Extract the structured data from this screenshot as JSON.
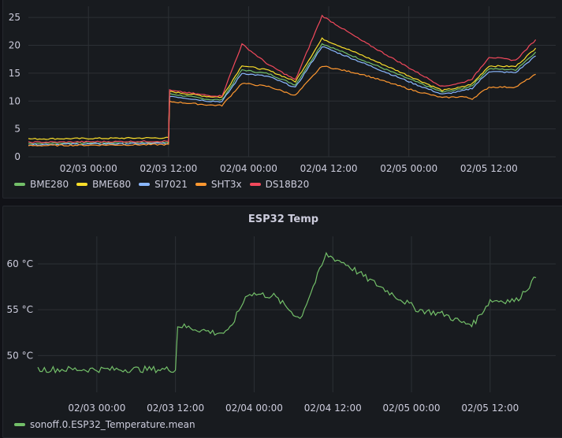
{
  "chart_data": [
    {
      "type": "line",
      "title": "",
      "ylim": [
        0,
        27
      ],
      "yticks": [
        0,
        5,
        10,
        15,
        20,
        25
      ],
      "xlim": [
        "02/02 15:00",
        "02/05 22:00"
      ],
      "xticks": [
        "02/03 00:00",
        "02/03 12:00",
        "02/04 00:00",
        "02/04 12:00",
        "02/05 00:00",
        "02/05 12:00"
      ],
      "grid": true,
      "legend": "bottom-left",
      "series": [
        {
          "name": "BME280",
          "color": "#73bf69",
          "x": [
            "02/02 15:00",
            "02/03 12:00",
            "02/03 12:10",
            "02/03 18:00",
            "02/03 20:00",
            "02/03 23:00",
            "02/04 03:00",
            "02/04 07:00",
            "02/04 11:00",
            "02/04 17:00",
            "02/05 01:00",
            "02/05 05:00",
            "02/05 08:00",
            "02/05 09:30",
            "02/05 12:00",
            "02/05 16:00",
            "02/05 19:00"
          ],
          "y": [
            2.4,
            2.6,
            11.3,
            10.3,
            10.2,
            15.6,
            14.9,
            12.9,
            20.3,
            17.4,
            13.5,
            11.6,
            12.2,
            12.8,
            15.8,
            15.6,
            18.8
          ]
        },
        {
          "name": "BME680",
          "color": "#fade2a",
          "x": [
            "02/02 15:00",
            "02/03 12:00",
            "02/03 12:10",
            "02/03 18:00",
            "02/03 20:00",
            "02/03 23:00",
            "02/04 03:00",
            "02/04 07:00",
            "02/04 11:00",
            "02/04 17:00",
            "02/05 01:00",
            "02/05 05:00",
            "02/05 08:00",
            "02/05 09:30",
            "02/05 12:00",
            "02/05 16:00",
            "02/05 19:00"
          ],
          "y": [
            3.2,
            3.4,
            11.7,
            10.8,
            10.7,
            16.4,
            15.5,
            13.5,
            21.2,
            18.2,
            14.0,
            11.9,
            12.5,
            13.1,
            16.3,
            16.2,
            19.5
          ]
        },
        {
          "name": "SI7021",
          "color": "#8ab8ff",
          "x": [
            "02/02 15:00",
            "02/03 12:00",
            "02/03 12:10",
            "02/03 18:00",
            "02/03 20:00",
            "02/03 23:00",
            "02/04 03:00",
            "02/04 07:00",
            "02/04 11:00",
            "02/04 17:00",
            "02/05 01:00",
            "02/05 05:00",
            "02/05 08:00",
            "02/05 09:30",
            "02/05 12:00",
            "02/05 16:00",
            "02/05 19:00"
          ],
          "y": [
            2.2,
            2.4,
            10.9,
            10.0,
            9.9,
            15.0,
            14.4,
            12.4,
            19.8,
            16.9,
            13.0,
            11.2,
            11.8,
            12.3,
            15.3,
            15.1,
            18.1
          ]
        },
        {
          "name": "SHT3x",
          "color": "#ff9830",
          "x": [
            "02/02 15:00",
            "02/03 12:00",
            "02/03 12:10",
            "02/03 18:00",
            "02/03 20:00",
            "02/03 23:00",
            "02/04 03:00",
            "02/04 07:00",
            "02/04 11:00",
            "02/04 17:00",
            "02/05 01:00",
            "02/05 05:00",
            "02/05 08:00",
            "02/05 09:30",
            "02/05 12:00",
            "02/05 16:00",
            "02/05 19:00"
          ],
          "y": [
            2.0,
            2.2,
            9.9,
            9.3,
            9.2,
            13.2,
            12.6,
            11.0,
            16.3,
            14.8,
            11.8,
            10.6,
            10.8,
            10.4,
            12.5,
            12.5,
            14.8
          ]
        },
        {
          "name": "DS18B20",
          "color": "#f2495c",
          "x": [
            "02/02 15:00",
            "02/03 12:00",
            "02/03 12:10",
            "02/03 18:00",
            "02/03 20:00",
            "02/03 23:00",
            "02/04 03:00",
            "02/04 07:00",
            "02/04 11:00",
            "02/04 17:00",
            "02/05 01:00",
            "02/05 05:00",
            "02/05 08:00",
            "02/05 09:30",
            "02/05 12:00",
            "02/05 16:00",
            "02/05 19:00"
          ],
          "y": [
            2.6,
            2.8,
            11.9,
            11.0,
            10.9,
            20.2,
            16.5,
            13.8,
            25.3,
            20.8,
            15.3,
            12.6,
            13.3,
            14.0,
            17.9,
            17.3,
            21.0
          ]
        }
      ]
    },
    {
      "type": "line",
      "title": "ESP32 Temp",
      "ylim": [
        46,
        63
      ],
      "yticks": [
        50,
        55,
        60
      ],
      "ytick_labels": [
        "50 °C",
        "55 °C",
        "60 °C"
      ],
      "xlim": [
        "02/02 15:00",
        "02/05 22:00"
      ],
      "xticks": [
        "02/03 00:00",
        "02/03 12:00",
        "02/04 00:00",
        "02/04 12:00",
        "02/05 00:00",
        "02/05 12:00"
      ],
      "grid": true,
      "legend": "bottom-left",
      "series": [
        {
          "name": "sonoff.0.ESP32_Temperature.mean",
          "color": "#73bf69",
          "x": [
            "02/02 15:00",
            "02/03 12:00",
            "02/03 12:20",
            "02/03 18:00",
            "02/03 20:00",
            "02/03 23:00",
            "02/04 03:00",
            "02/04 07:00",
            "02/04 11:00",
            "02/04 14:00",
            "02/04 17:00",
            "02/05 01:00",
            "02/05 05:00",
            "02/05 08:00",
            "02/05 09:30",
            "02/05 12:00",
            "02/05 16:00",
            "02/05 19:00"
          ],
          "y": [
            48.5,
            48.5,
            53.3,
            52.5,
            52.5,
            56.8,
            56.5,
            54.0,
            61.0,
            60.0,
            58.5,
            55.0,
            54.5,
            53.5,
            53.5,
            56.0,
            56.0,
            58.5
          ]
        }
      ]
    }
  ]
}
